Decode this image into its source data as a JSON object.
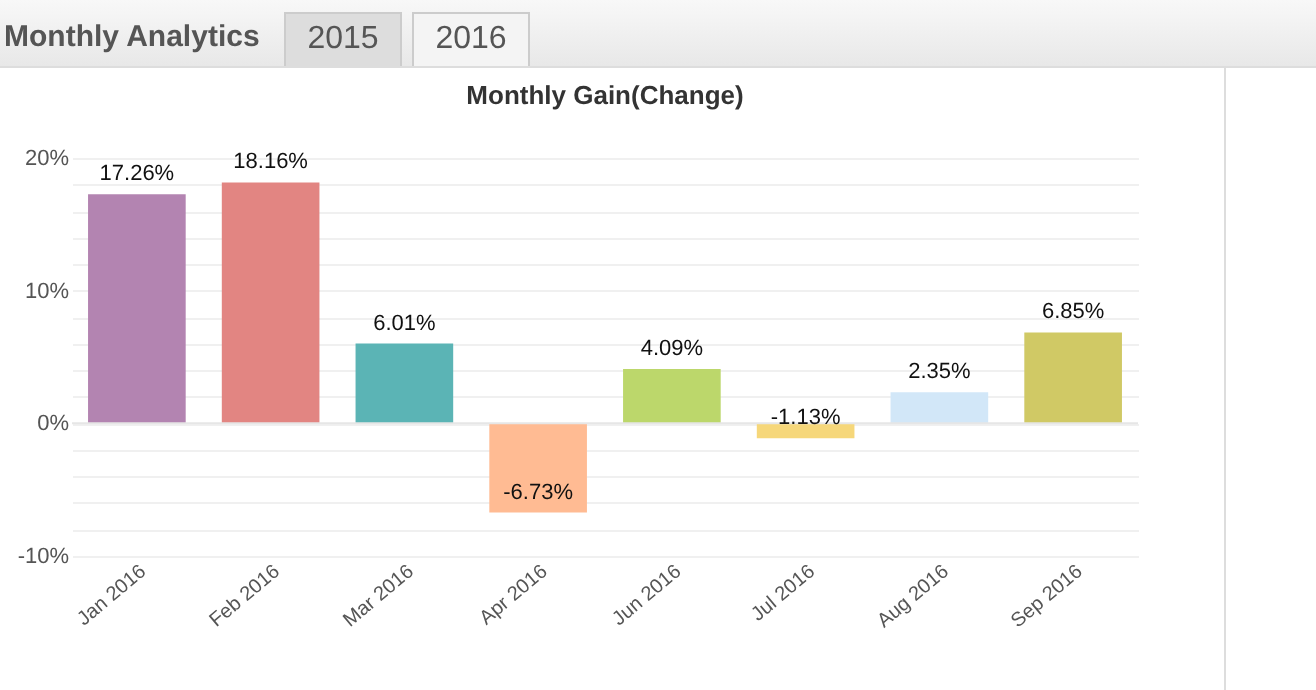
{
  "chart_data": {
    "type": "bar",
    "title": "Monthly Gain(Change)",
    "annotations": [
      "Monthly Analytics",
      "2015",
      "2016"
    ],
    "categories": [
      "Jan 2016",
      "Feb 2016",
      "Mar 2016",
      "Apr 2016",
      "Jun 2016",
      "Jul 2016",
      "Aug 2016",
      "Sep 2016"
    ],
    "values": [
      17.26,
      18.16,
      6.01,
      -6.73,
      4.09,
      -1.13,
      2.35,
      6.85
    ],
    "value_labels": [
      "17.26%",
      "18.16%",
      "6.01%",
      "-6.73%",
      "4.09%",
      "-1.13%",
      "2.35%",
      "6.85%"
    ],
    "colors": [
      "#b384b1",
      "#e28582",
      "#5bb4b5",
      "#ffbb93",
      "#bcd76b",
      "#f6d77a",
      "#d2e7f8",
      "#d0c965"
    ],
    "ylim": [
      -10,
      20
    ],
    "yticks": [
      {
        "value": -10,
        "label": "-10%"
      },
      {
        "value": -8,
        "label": null
      },
      {
        "value": -6,
        "label": null
      },
      {
        "value": -4,
        "label": null
      },
      {
        "value": -2,
        "label": null
      },
      {
        "value": 0,
        "label": "0%"
      },
      {
        "value": 2,
        "label": null
      },
      {
        "value": 4,
        "label": null
      },
      {
        "value": 6,
        "label": null
      },
      {
        "value": 8,
        "label": null
      },
      {
        "value": 10,
        "label": "10%"
      },
      {
        "value": 12,
        "label": null
      },
      {
        "value": 14,
        "label": null
      },
      {
        "value": 16,
        "label": null
      },
      {
        "value": 18,
        "label": null
      },
      {
        "value": 20,
        "label": "20%"
      }
    ],
    "grid": "y"
  }
}
